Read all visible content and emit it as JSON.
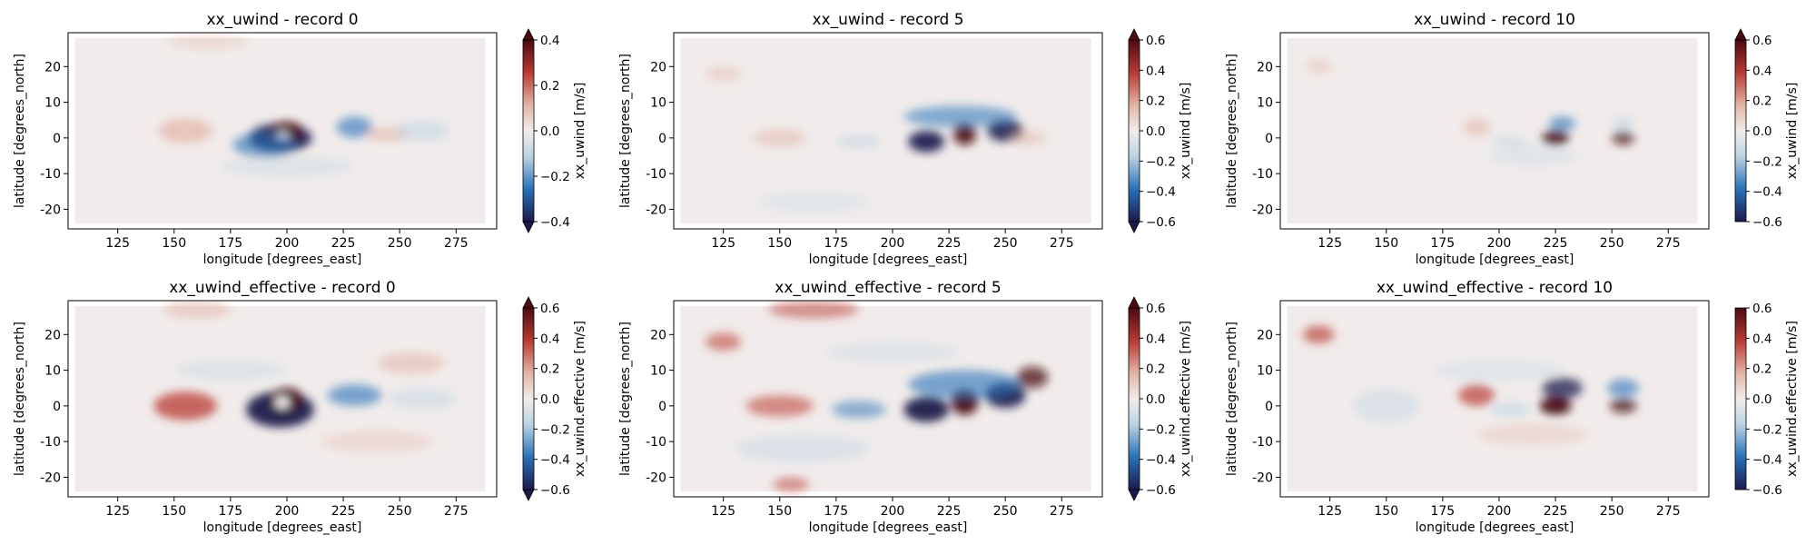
{
  "colorbar_colors": {
    "low": "#1b1a4c",
    "mid_low": "#2a72b8",
    "light_low": "#bcd4e3",
    "center": "#f1eceb",
    "light_high": "#e2b5a6",
    "mid_high": "#b93a32",
    "high": "#4a0b13"
  },
  "chart_data": [
    {
      "type": "heatmap",
      "title": "xx_uwind - record 0",
      "xlabel": "longitude [degrees_east]",
      "ylabel": "latitude [degrees_north]",
      "xlim": [
        103,
        293
      ],
      "ylim": [
        -25.5,
        29.5
      ],
      "xticks": [
        125,
        150,
        175,
        200,
        225,
        250,
        275
      ],
      "yticks": [
        -20,
        -10,
        0,
        10,
        20
      ],
      "colorbar": {
        "label": "xx_uwind [m/s]",
        "range": [
          -0.4,
          0.4
        ],
        "ticks": [
          "0.4",
          "0.2",
          "0.0",
          "−0.2",
          "−0.4"
        ],
        "extend": "both"
      }
    },
    {
      "type": "heatmap",
      "title": "xx_uwind - record 5",
      "xlabel": "longitude [degrees_east]",
      "ylabel": "latitude [degrees_north]",
      "xlim": [
        103,
        293
      ],
      "ylim": [
        -25.5,
        29.5
      ],
      "xticks": [
        125,
        150,
        175,
        200,
        225,
        250,
        275
      ],
      "yticks": [
        -20,
        -10,
        0,
        10,
        20
      ],
      "colorbar": {
        "label": "xx_uwind [m/s]",
        "range": [
          -0.6,
          0.6
        ],
        "ticks": [
          "0.6",
          "0.4",
          "0.2",
          "0.0",
          "−0.2",
          "−0.4",
          "−0.6"
        ],
        "extend": "both"
      }
    },
    {
      "type": "heatmap",
      "title": "xx_uwind - record 10",
      "xlabel": "longitude [degrees_east]",
      "ylabel": "latitude [degrees_north]",
      "xlim": [
        103,
        293
      ],
      "ylim": [
        -25.5,
        29.5
      ],
      "xticks": [
        125,
        150,
        175,
        200,
        225,
        250,
        275
      ],
      "yticks": [
        -20,
        -10,
        0,
        10,
        20
      ],
      "colorbar": {
        "label": "xx_uwind [m/s]",
        "range": [
          -0.6,
          0.6
        ],
        "ticks": [
          "0.6",
          "0.4",
          "0.2",
          "0.0",
          "−0.2",
          "−0.4",
          "−0.6"
        ],
        "extend": "max"
      }
    },
    {
      "type": "heatmap",
      "title": "xx_uwind_effective - record 0",
      "xlabel": "longitude [degrees_east]",
      "ylabel": "latitude [degrees_north]",
      "xlim": [
        103,
        293
      ],
      "ylim": [
        -25.5,
        29.5
      ],
      "xticks": [
        125,
        150,
        175,
        200,
        225,
        250,
        275
      ],
      "yticks": [
        -20,
        -10,
        0,
        10,
        20
      ],
      "colorbar": {
        "label": "xx_uwind.effective [m/s]",
        "range": [
          -0.6,
          0.6
        ],
        "ticks": [
          "0.6",
          "0.4",
          "0.2",
          "0.0",
          "−0.2",
          "−0.4",
          "−0.6"
        ],
        "extend": "both"
      }
    },
    {
      "type": "heatmap",
      "title": "xx_uwind_effective - record 5",
      "xlabel": "longitude [degrees_east]",
      "ylabel": "latitude [degrees_north]",
      "xlim": [
        103,
        293
      ],
      "ylim": [
        -25.5,
        29.5
      ],
      "xticks": [
        125,
        150,
        175,
        200,
        225,
        250,
        275
      ],
      "yticks": [
        -20,
        -10,
        0,
        10,
        20
      ],
      "colorbar": {
        "label": "xx_uwind.effective [m/s]",
        "range": [
          -0.6,
          0.6
        ],
        "ticks": [
          "0.6",
          "0.4",
          "0.2",
          "0.0",
          "−0.2",
          "−0.4",
          "−0.6"
        ],
        "extend": "both"
      }
    },
    {
      "type": "heatmap",
      "title": "xx_uwind_effective - record 10",
      "xlabel": "longitude [degrees_east]",
      "ylabel": "latitude [degrees_north]",
      "xlim": [
        103,
        293
      ],
      "ylim": [
        -25.5,
        29.5
      ],
      "xticks": [
        125,
        150,
        175,
        200,
        225,
        250,
        275
      ],
      "yticks": [
        -20,
        -10,
        0,
        10,
        20
      ],
      "colorbar": {
        "label": "xx_uwind.effective [m/s]",
        "range": [
          -0.6,
          0.6
        ],
        "ticks": [
          "0.6",
          "0.4",
          "0.2",
          "0.0",
          "−0.2",
          "−0.4",
          "−0.6"
        ],
        "extend": "none"
      }
    }
  ]
}
